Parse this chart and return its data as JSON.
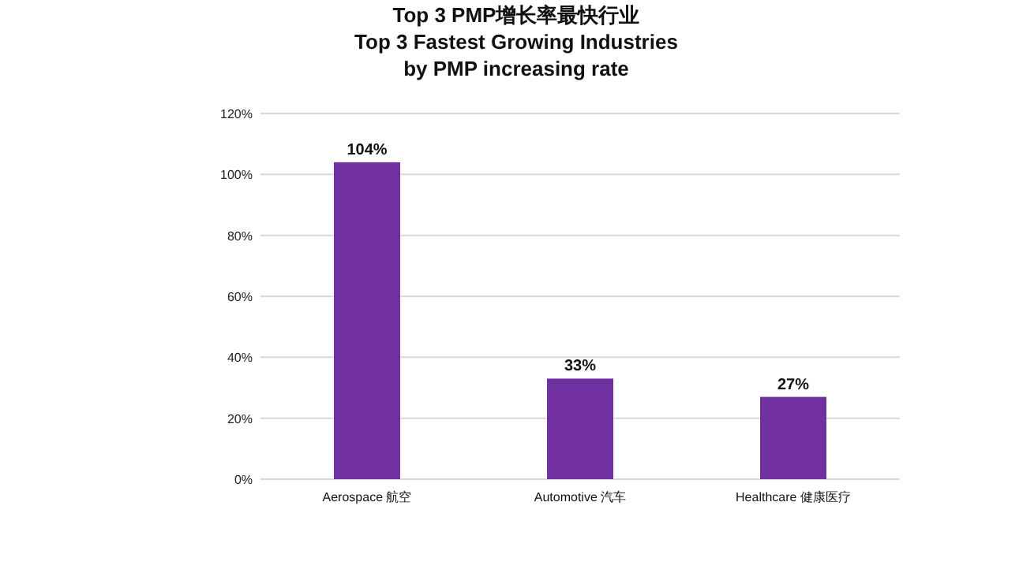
{
  "chart_data": {
    "type": "bar",
    "title": "Top 3 PMP增长率最快行业\nTop 3 Fastest Growing Industries\nby PMP increasing rate",
    "categories": [
      "Aerospace 航空",
      "Automotive 汽车",
      "Healthcare 健康医疗"
    ],
    "values": [
      104,
      33,
      27
    ],
    "value_labels": [
      "104%",
      "33%",
      "27%"
    ],
    "color": "#7030a0",
    "ylim": [
      0,
      120
    ],
    "yticks": [
      {
        "value": 0,
        "label": "0%"
      },
      {
        "value": 20,
        "label": "20%"
      },
      {
        "value": 40,
        "label": "40%"
      },
      {
        "value": 60,
        "label": "60%"
      },
      {
        "value": 80,
        "label": "80%"
      },
      {
        "value": 100,
        "label": "100%"
      },
      {
        "value": 120,
        "label": "120%"
      }
    ],
    "grid": "y"
  }
}
